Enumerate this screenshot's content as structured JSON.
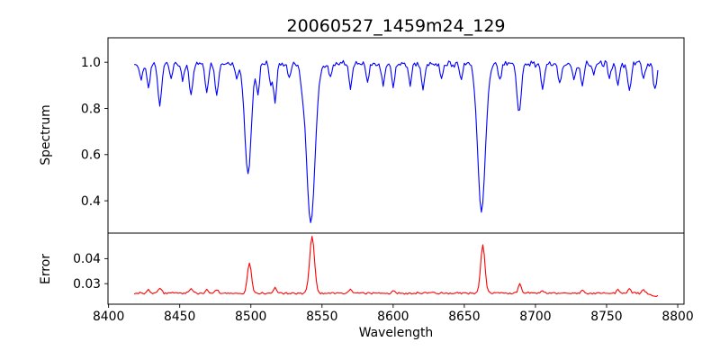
{
  "figure": {
    "background": "#ffffff",
    "spine_color": "#000000",
    "text_color": "#000000"
  },
  "chart_data": [
    {
      "type": "line",
      "title": "20060527_1459m24_129",
      "ylabel": "Spectrum",
      "xlabel": "",
      "grid": false,
      "legend": null,
      "line_color": "#0000ff",
      "xlim": [
        8399.6,
        8804.4
      ],
      "ylim": [
        0.26,
        1.106
      ],
      "yticks": [
        0.4,
        0.6,
        0.8,
        1.0
      ],
      "ytick_labels": [
        "0.4",
        "0.6",
        "0.8",
        "1.0"
      ],
      "x_start": 8418,
      "x_end": 8786,
      "x_step": 1.0,
      "baseline": 0.993,
      "noise": 0.013,
      "noise_growth": 0.45,
      "noise_follows_level": true,
      "absorption_lines": [
        {
          "center": 8423.0,
          "depth": 0.07,
          "sigma": 1.0
        },
        {
          "center": 8428.0,
          "depth": 0.1,
          "sigma": 1.1
        },
        {
          "center": 8436.0,
          "depth": 0.18,
          "sigma": 1.3
        },
        {
          "center": 8444.0,
          "depth": 0.06,
          "sigma": 1.0
        },
        {
          "center": 8452.0,
          "depth": 0.07,
          "sigma": 1.0
        },
        {
          "center": 8458.0,
          "depth": 0.14,
          "sigma": 1.2
        },
        {
          "center": 8469.0,
          "depth": 0.13,
          "sigma": 1.1
        },
        {
          "center": 8476.0,
          "depth": 0.14,
          "sigma": 1.2
        },
        {
          "center": 8490.0,
          "depth": 0.06,
          "sigma": 1.0
        },
        {
          "center": 8498.0,
          "depth": 0.48,
          "sigma": 2.3
        },
        {
          "center": 8505.0,
          "depth": 0.13,
          "sigma": 1.0
        },
        {
          "center": 8514.0,
          "depth": 0.09,
          "sigma": 1.0
        },
        {
          "center": 8517.0,
          "depth": 0.16,
          "sigma": 1.1
        },
        {
          "center": 8527.0,
          "depth": 0.06,
          "sigma": 1.0
        },
        {
          "center": 8536.0,
          "depth": 0.05,
          "sigma": 1.0
        },
        {
          "center": 8542.1,
          "depth": 0.69,
          "sigma": 3.0
        },
        {
          "center": 8556.0,
          "depth": 0.06,
          "sigma": 1.0
        },
        {
          "center": 8570.0,
          "depth": 0.11,
          "sigma": 1.0
        },
        {
          "center": 8582.0,
          "depth": 0.08,
          "sigma": 1.0
        },
        {
          "center": 8593.0,
          "depth": 0.1,
          "sigma": 1.0
        },
        {
          "center": 8600.0,
          "depth": 0.1,
          "sigma": 1.0
        },
        {
          "center": 8612.0,
          "depth": 0.1,
          "sigma": 1.0
        },
        {
          "center": 8621.0,
          "depth": 0.11,
          "sigma": 1.1
        },
        {
          "center": 8634.0,
          "depth": 0.07,
          "sigma": 1.0
        },
        {
          "center": 8648.0,
          "depth": 0.08,
          "sigma": 1.0
        },
        {
          "center": 8662.1,
          "depth": 0.64,
          "sigma": 2.7
        },
        {
          "center": 8675.0,
          "depth": 0.08,
          "sigma": 1.0
        },
        {
          "center": 8688.6,
          "depth": 0.22,
          "sigma": 1.5
        },
        {
          "center": 8705.0,
          "depth": 0.11,
          "sigma": 1.1
        },
        {
          "center": 8717.0,
          "depth": 0.09,
          "sigma": 1.0
        },
        {
          "center": 8727.0,
          "depth": 0.07,
          "sigma": 1.0
        },
        {
          "center": 8733.0,
          "depth": 0.1,
          "sigma": 1.0
        },
        {
          "center": 8741.0,
          "depth": 0.06,
          "sigma": 1.0
        },
        {
          "center": 8752.0,
          "depth": 0.06,
          "sigma": 1.0
        },
        {
          "center": 8758.0,
          "depth": 0.09,
          "sigma": 1.0
        },
        {
          "center": 8766.0,
          "depth": 0.11,
          "sigma": 1.1
        },
        {
          "center": 8776.0,
          "depth": 0.07,
          "sigma": 1.0
        },
        {
          "center": 8784.0,
          "depth": 0.11,
          "sigma": 1.2
        }
      ]
    },
    {
      "type": "line",
      "title": "",
      "ylabel": "Error",
      "xlabel": "Wavelength",
      "grid": false,
      "legend": null,
      "line_color": "#ff0000",
      "xlim": [
        8399.6,
        8804.4
      ],
      "ylim": [
        0.0218,
        0.0502
      ],
      "yticks": [
        0.03,
        0.04
      ],
      "ytick_labels": [
        "0.03",
        "0.04"
      ],
      "xticks": [
        8400,
        8450,
        8500,
        8550,
        8600,
        8650,
        8700,
        8750,
        8800
      ],
      "xtick_labels": [
        "8400",
        "8450",
        "8500",
        "8550",
        "8600",
        "8650",
        "8700",
        "8750",
        "8800"
      ],
      "x_start": 8418,
      "x_end": 8786,
      "x_step": 1.0,
      "baseline": 0.0262,
      "noise": 0.00045,
      "noise_growth": 0.1,
      "noise_follows_level": false,
      "peaks": [
        {
          "center": 8428.0,
          "amp": 0.0015,
          "sigma": 1.0
        },
        {
          "center": 8436.0,
          "amp": 0.0022,
          "sigma": 1.2
        },
        {
          "center": 8458.0,
          "amp": 0.002,
          "sigma": 1.2
        },
        {
          "center": 8469.0,
          "amp": 0.0013,
          "sigma": 1.0
        },
        {
          "center": 8476.0,
          "amp": 0.0016,
          "sigma": 1.0
        },
        {
          "center": 8499.0,
          "amp": 0.0122,
          "sigma": 1.4
        },
        {
          "center": 8517.0,
          "amp": 0.002,
          "sigma": 1.0
        },
        {
          "center": 8543.0,
          "amp": 0.0226,
          "sigma": 1.7
        },
        {
          "center": 8570.0,
          "amp": 0.0016,
          "sigma": 1.0
        },
        {
          "center": 8600.0,
          "amp": 0.001,
          "sigma": 1.0
        },
        {
          "center": 8663.0,
          "amp": 0.0192,
          "sigma": 1.5
        },
        {
          "center": 8689.0,
          "amp": 0.0035,
          "sigma": 1.2
        },
        {
          "center": 8705.0,
          "amp": 0.001,
          "sigma": 1.0
        },
        {
          "center": 8733.0,
          "amp": 0.0013,
          "sigma": 1.0
        },
        {
          "center": 8758.0,
          "amp": 0.0016,
          "sigma": 1.0
        },
        {
          "center": 8766.0,
          "amp": 0.002,
          "sigma": 1.0
        },
        {
          "center": 8776.0,
          "amp": 0.0018,
          "sigma": 1.0
        },
        {
          "center": 8785.0,
          "amp": -0.0012,
          "sigma": 3.0
        }
      ]
    }
  ]
}
